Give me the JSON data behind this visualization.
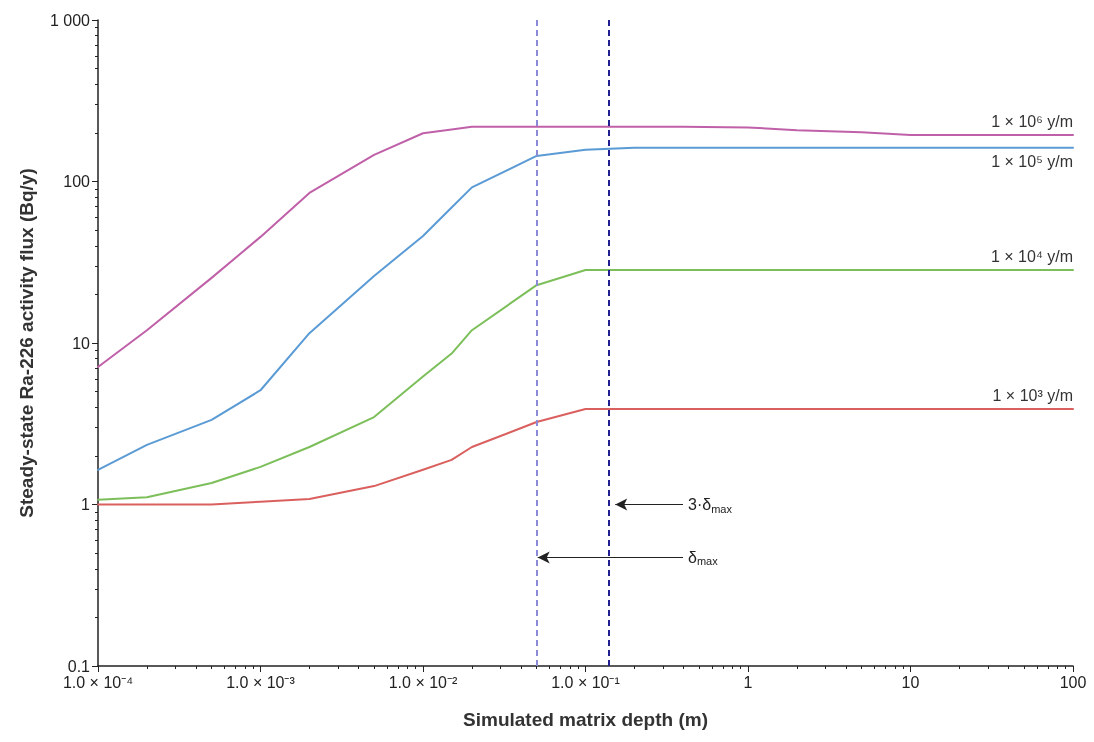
{
  "chart_data": {
    "type": "line",
    "xlabel": "Simulated matrix depth (m)",
    "ylabel": "Steady-state Ra-226 activity flux (Bq/y)",
    "log": "xy",
    "grid": false,
    "legend": false,
    "marker": "none",
    "line_style": "solid",
    "x": [
      0.0001,
      0.0002,
      0.0005,
      0.001,
      0.002,
      0.005,
      0.01,
      0.015,
      0.02,
      0.05,
      0.1,
      0.2,
      0.4,
      1,
      2,
      5,
      10,
      100
    ],
    "xlim": [
      0.0001,
      100
    ],
    "xticks": [
      {
        "value": 0.0001,
        "label": "1.0 × 10⁻⁴"
      },
      {
        "value": 0.001,
        "label": "1.0 × 10⁻³"
      },
      {
        "value": 0.01,
        "label": "1.0 × 10⁻²"
      },
      {
        "value": 0.1,
        "label": "1.0 × 10⁻¹"
      },
      1,
      10,
      100
    ],
    "ylim": [
      0.1,
      1000
    ],
    "yticks": [
      0.1,
      1,
      10,
      100,
      {
        "value": 1000,
        "label": "1 000"
      }
    ],
    "series": [
      {
        "name": "1 × 10⁶ y/m",
        "color": "#c060a8",
        "values": [
          7.1,
          12.0,
          25.3,
          45.4,
          85,
          146,
          199,
          210,
          218,
          218,
          218,
          218,
          218,
          216,
          208,
          202,
          194,
          194
        ]
      },
      {
        "name": "1 × 10⁵ y/m",
        "color": "#5b9bd5",
        "values": [
          1.64,
          2.34,
          3.34,
          5.1,
          11.5,
          26,
          46,
          69,
          92,
          144,
          157,
          162,
          162,
          162,
          162,
          162,
          162,
          162
        ]
      },
      {
        "name": "1 × 10⁴ y/m",
        "color": "#7cbf5a",
        "values": [
          1.07,
          1.11,
          1.36,
          1.71,
          2.27,
          3.48,
          6.2,
          8.6,
          12.0,
          22.8,
          28.3,
          28.3,
          28.3,
          28.3,
          28.3,
          28.3,
          28.3,
          28.3
        ]
      },
      {
        "name": "1 × 10³ y/m",
        "color": "#d9605e",
        "values": [
          1.0,
          1.0,
          1.0,
          1.04,
          1.08,
          1.3,
          1.64,
          1.89,
          2.27,
          3.24,
          3.9,
          3.9,
          3.9,
          3.9,
          3.9,
          3.9,
          3.9,
          3.9
        ]
      }
    ],
    "ref_lines": [
      {
        "axis": "x",
        "value": 0.048,
        "color": "#8a8ad6",
        "line_style": "dashed"
      },
      {
        "axis": "x",
        "value": 0.144,
        "color": "#1f1f8f",
        "line_style": "dashed"
      }
    ],
    "annotations": [
      {
        "text": "3·δ$_{max}$",
        "x": 0.144,
        "y": 1
      },
      {
        "text": "δ$_{max}$",
        "x": 0.048,
        "y": 0.47
      }
    ]
  }
}
